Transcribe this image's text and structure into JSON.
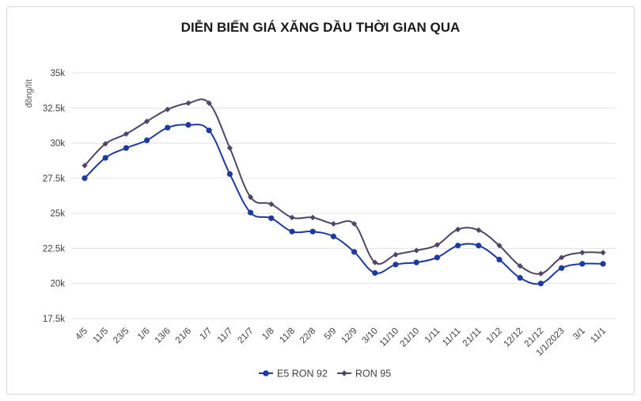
{
  "chart_data": {
    "type": "line",
    "title": "DIỄN BIẾN GIÁ XĂNG DẦU THỜI GIAN QUA",
    "xlabel": "",
    "ylabel": "đồng/lít",
    "ylim": [
      17500,
      35000
    ],
    "yticks": [
      17500,
      20000,
      22500,
      25000,
      27500,
      30000,
      32500,
      35000
    ],
    "ytick_labels": [
      "17.5k",
      "20k",
      "22.5k",
      "25k",
      "27.5k",
      "30k",
      "32.5k",
      "35k"
    ],
    "grid": true,
    "legend_position": "bottom",
    "categories": [
      "4/5",
      "11/5",
      "23/5",
      "1/6",
      "13/6",
      "21/6",
      "1/7",
      "11/7",
      "21/7",
      "1/8",
      "11/8",
      "22/8",
      "5/9",
      "12/9",
      "3/10",
      "11/10",
      "21/10",
      "1/11",
      "11/11",
      "21/11",
      "1/12",
      "12/12",
      "21/12",
      "1/1/2023",
      "3/1",
      "11/1"
    ],
    "series": [
      {
        "name": "E5 RON 92",
        "color": "#1f3a9e",
        "marker": "circle",
        "values": [
          27500,
          28950,
          29650,
          30200,
          31100,
          31300,
          30900,
          27800,
          25050,
          24650,
          23700,
          23700,
          23350,
          22250,
          20750,
          21350,
          21500,
          21850,
          22700,
          22700,
          21700,
          20400,
          20000,
          21100,
          21400,
          21400
        ]
      },
      {
        "name": "RON 95",
        "color": "#4f4566",
        "marker": "diamond",
        "values": [
          28400,
          29950,
          30650,
          31550,
          32400,
          32850,
          32850,
          29650,
          26150,
          25650,
          24700,
          24700,
          24250,
          24250,
          21500,
          22050,
          22350,
          22750,
          23850,
          23800,
          22700,
          21250,
          20700,
          21850,
          22200,
          22200
        ]
      }
    ]
  }
}
